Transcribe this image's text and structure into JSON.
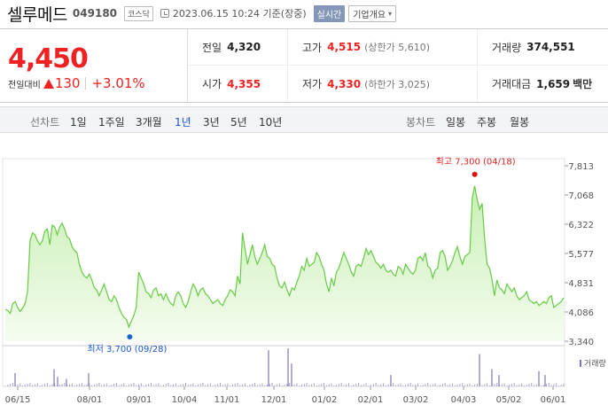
{
  "header": {
    "name": "셀루메드",
    "code": "049180",
    "market": "코스닥",
    "timestamp": "2023.06.15 10:24 기준(장중)",
    "realtime": "실시간",
    "company_info": "기업개요"
  },
  "price": {
    "current": "4,450",
    "change_label": "전일대비",
    "change_amount": "130",
    "change_pct": "+3.01%",
    "up_color": "#e22222"
  },
  "stats": {
    "prev_close_label": "전일",
    "prev_close": "4,320",
    "high_label": "고가",
    "high": "4,515",
    "upper_limit": "(상한가 5,610)",
    "volume_label": "거래량",
    "volume": "374,551",
    "open_label": "시가",
    "open": "4,355",
    "low_label": "저가",
    "low": "4,330",
    "lower_limit": "(하한가 3,025)",
    "trade_value_label": "거래대금",
    "trade_value": "1,659",
    "trade_value_unit": "백만"
  },
  "tabs": {
    "line_label": "선차트",
    "line_items": [
      "1일",
      "1주일",
      "3개월",
      "1년",
      "3년",
      "5년",
      "10년"
    ],
    "active": "1년",
    "candle_label": "봉차트",
    "candle_items": [
      "일봉",
      "주봉",
      "월봉"
    ]
  },
  "chart_data": {
    "type": "area",
    "y_ticks": [
      "7,813",
      "7,068",
      "6,322",
      "5,577",
      "4,831",
      "4,086",
      "3,340"
    ],
    "ylim": [
      3340,
      7813
    ],
    "x_ticks": [
      "06/15",
      "08/01",
      "09/01",
      "10/04",
      "11/01",
      "12/01",
      "01/02",
      "02/01",
      "03/02",
      "04/03",
      "05/02",
      "06/01"
    ],
    "high_annotation": "최고 7,300 (04/18)",
    "low_annotation": "최저 3,700 (09/28)",
    "volume_legend": "거래량",
    "line_color": "#66cc44",
    "fill_color": "#dff5d2",
    "high_color": "#dd1111",
    "low_color": "#1a66cc",
    "series": [
      4150,
      4120,
      4050,
      4300,
      4350,
      4200,
      4100,
      4180,
      4300,
      4600,
      5900,
      6100,
      6050,
      5900,
      5800,
      5900,
      6150,
      6200,
      5800,
      6300,
      6250,
      6050,
      6250,
      6350,
      6200,
      6000,
      5950,
      5750,
      5650,
      5600,
      5300,
      5100,
      5000,
      4950,
      5050,
      4900,
      4700,
      4650,
      4500,
      4650,
      4800,
      4600,
      4400,
      4350,
      4500,
      4400,
      4200,
      4050,
      3950,
      3900,
      3700,
      3850,
      4000,
      4200,
      5100,
      4950,
      4800,
      4600,
      4550,
      4450,
      4650,
      4700,
      4500,
      4550,
      4400,
      4550,
      4400,
      4300,
      4250,
      4500,
      4600,
      4500,
      4300,
      4200,
      4350,
      4600,
      4800,
      4700,
      4500,
      4650,
      4700,
      4550,
      4500,
      4400,
      4300,
      4350,
      4400,
      4300,
      4250,
      4400,
      4500,
      4650,
      4600,
      4500,
      5000,
      4800,
      6100,
      5700,
      5300,
      5550,
      5800,
      5500,
      5300,
      5450,
      5600,
      5800,
      5500,
      5450,
      5300,
      5250,
      4950,
      4750,
      4700,
      4850,
      4650,
      4500,
      4700,
      4650,
      4850,
      5000,
      5250,
      5150,
      5450,
      5250,
      5300,
      5350,
      5600,
      5500,
      5300,
      5150,
      4800,
      4600,
      4950,
      4750,
      5100,
      5200,
      5400,
      5600,
      5450,
      5300,
      5100,
      5000,
      5250,
      5300,
      5250,
      5450,
      5700,
      5550,
      5650,
      5500,
      5350,
      5300,
      5200,
      5300,
      5150,
      5100,
      5150,
      5050,
      5000,
      5250,
      5200,
      5050,
      5300,
      5200,
      5100,
      5050,
      5150,
      5450,
      5500,
      5400,
      5600,
      5250,
      5200,
      4950,
      5150,
      5200,
      5600,
      5650,
      5500,
      5150,
      5250,
      5400,
      5600,
      5750,
      5500,
      5300,
      5500,
      5550,
      5600,
      7000,
      7300,
      6950,
      6700,
      6850,
      5950,
      5300,
      5200,
      4900,
      4500,
      4900,
      4700,
      4650,
      4550,
      4800,
      4700,
      4600,
      4700,
      4500,
      4400,
      4450,
      4500,
      4600,
      4400,
      4350,
      4300,
      4350,
      4250,
      4300,
      4350,
      4300,
      4450,
      4500,
      4200,
      4250,
      4300,
      4350,
      4450
    ],
    "volume_spikes": [
      [
        14,
        0.35
      ],
      [
        58,
        0.45
      ],
      [
        62,
        0.25
      ],
      [
        72,
        0.2
      ],
      [
        97,
        0.35
      ],
      [
        300,
        0.95
      ],
      [
        322,
        1.0
      ],
      [
        326,
        0.6
      ],
      [
        438,
        0.3
      ],
      [
        538,
        0.85
      ],
      [
        552,
        0.45
      ],
      [
        560,
        0.3
      ],
      [
        605,
        0.4
      ],
      [
        612,
        0.3
      ]
    ]
  }
}
